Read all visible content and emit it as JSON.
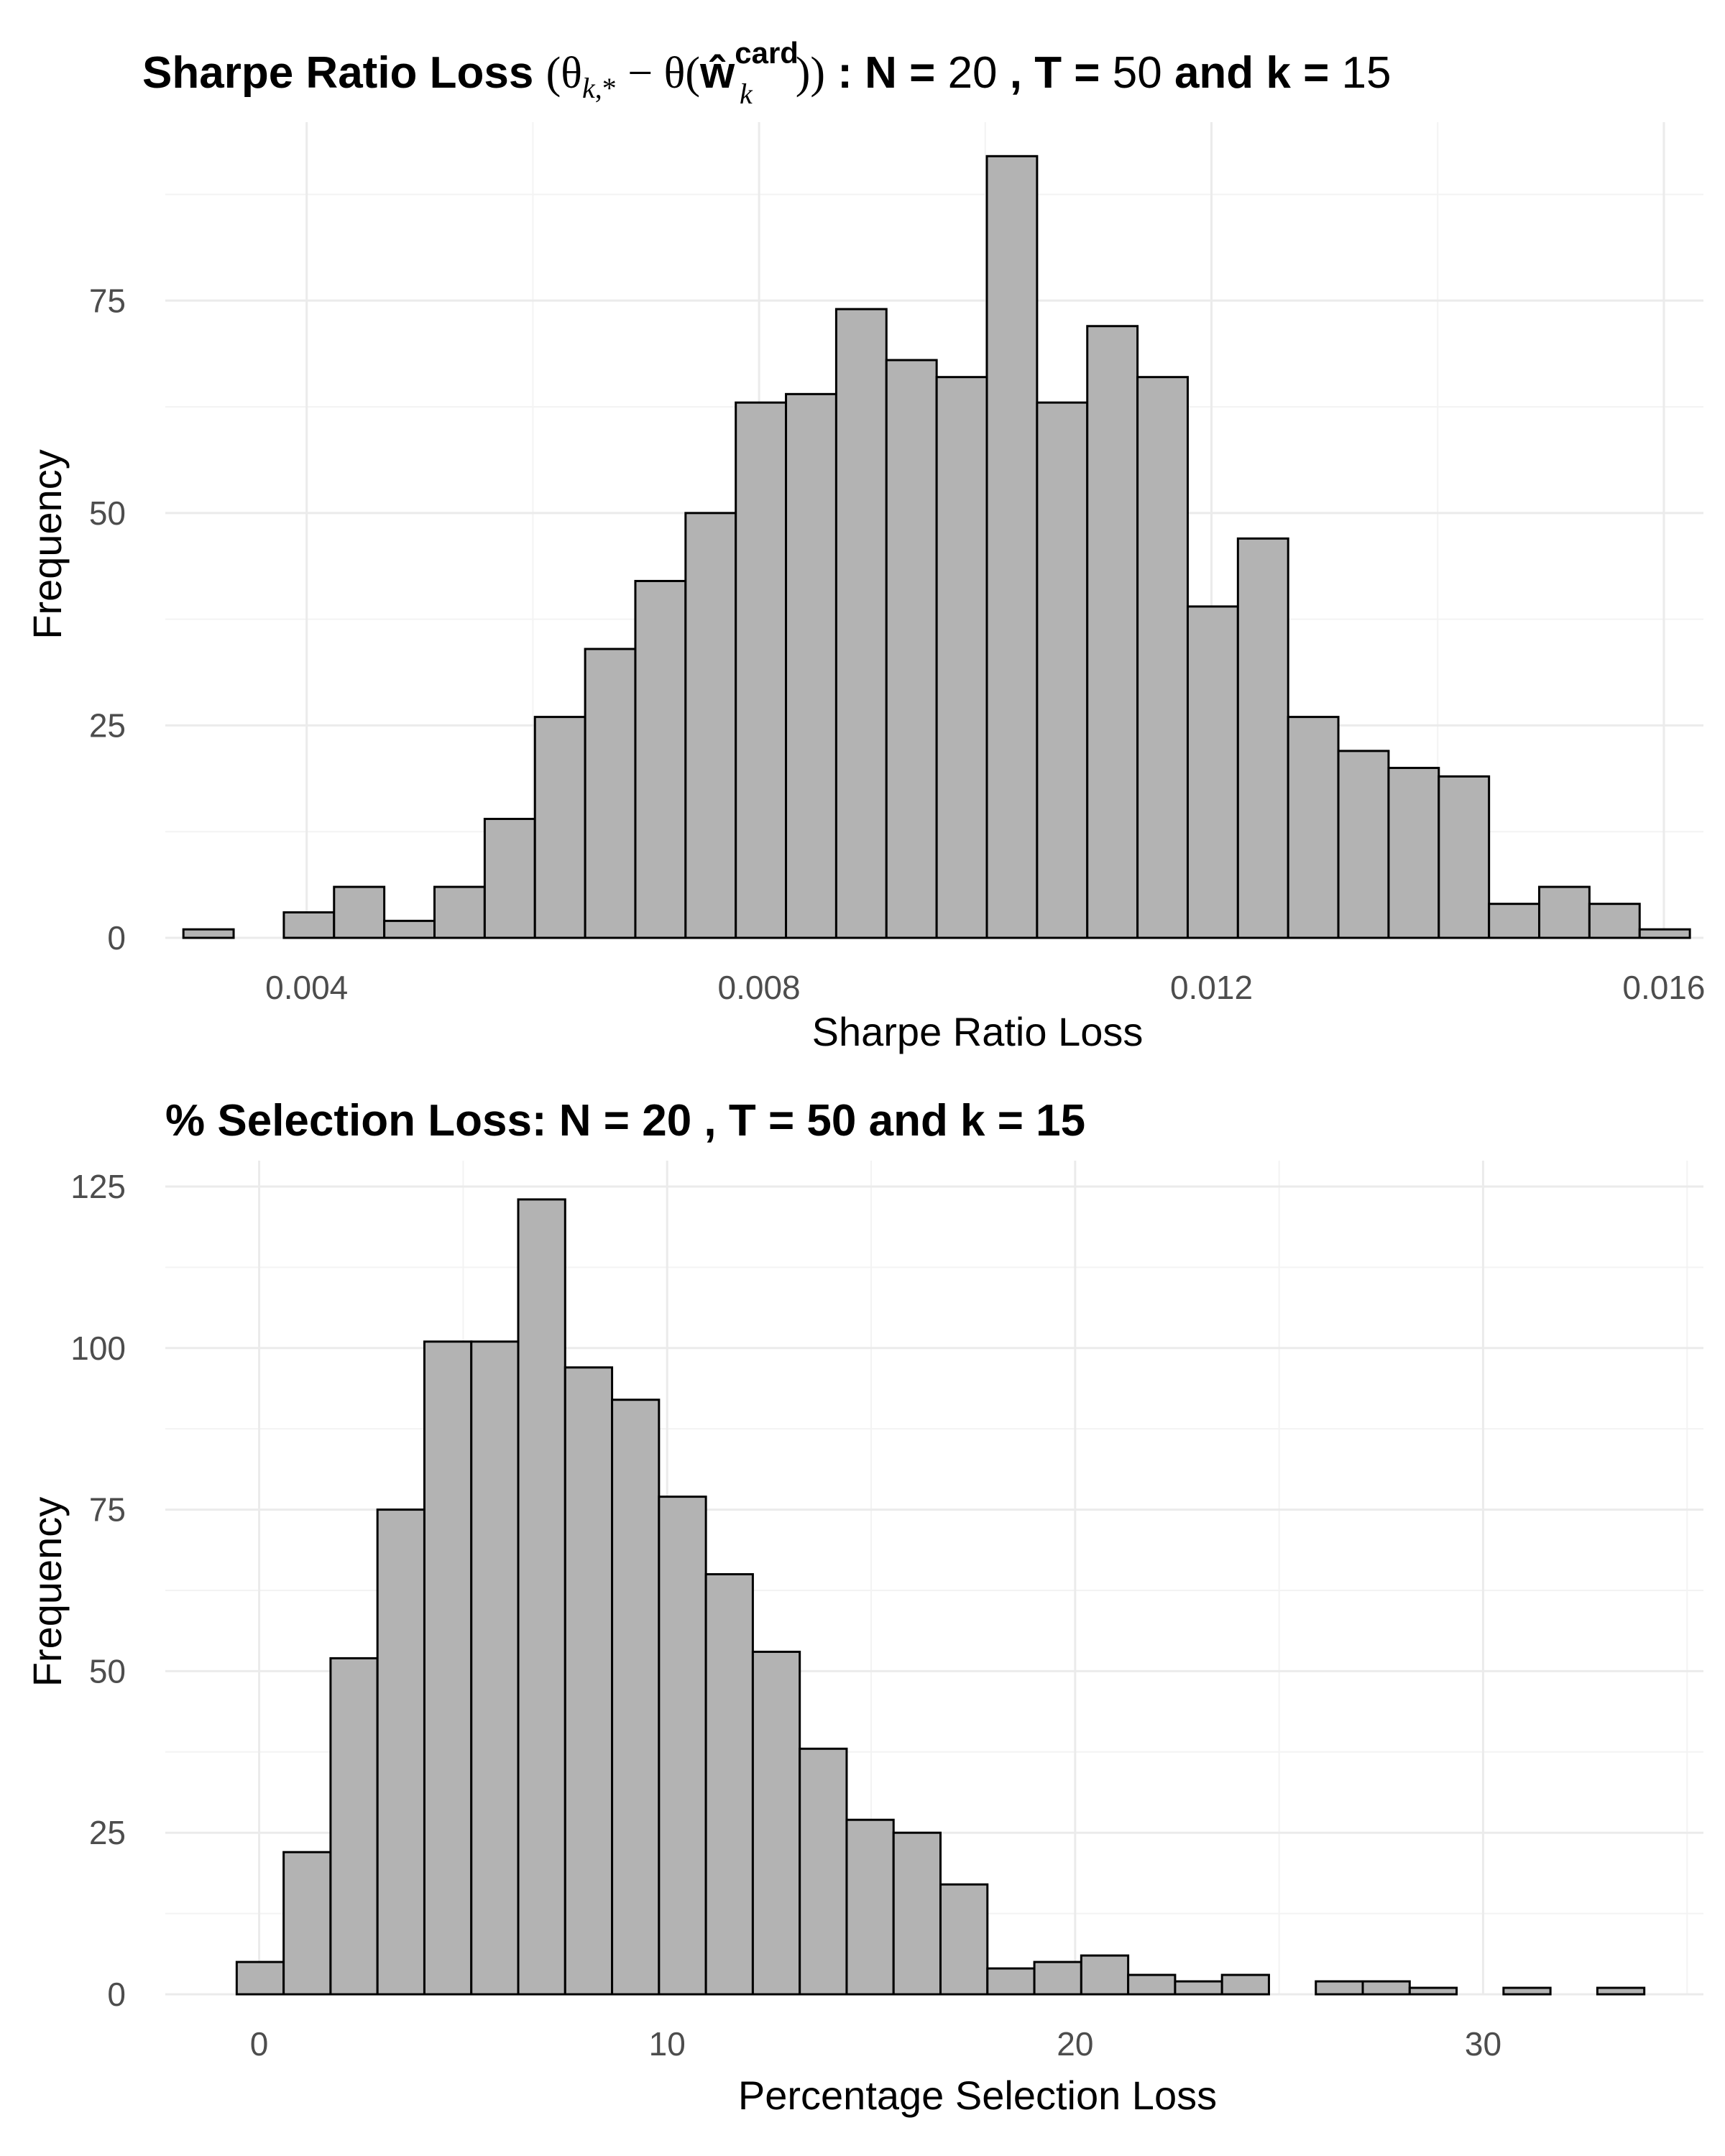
{
  "chart_data": [
    {
      "type": "bar",
      "title_parts": {
        "prefix": "Sharpe Ratio Loss ",
        "expr_open": "(θ",
        "sub_k": "k",
        "sub_star": ",*",
        "expr_mid": " − θ(",
        "w_hat": "ŵ",
        "sup_card": "card",
        "sub_k2": "k",
        "expr_close": "))",
        "n_label": " : N = ",
        "n_value": "20",
        "t_label": " , T = ",
        "t_value": "50",
        "k_label": "  and k = ",
        "k_value": "15"
      },
      "xlabel": "Sharpe Ratio Loss",
      "ylabel": "Frequency",
      "xlim": [
        0.00275,
        0.01635
      ],
      "ylim": [
        0,
        96
      ],
      "xticks": [
        0.004,
        0.008,
        0.012,
        0.016
      ],
      "xtick_labels": [
        "0.004",
        "0.008",
        "0.012",
        "0.016"
      ],
      "yticks": [
        0,
        25,
        50,
        75
      ],
      "ytick_labels": [
        "0",
        "25",
        "50",
        "75"
      ],
      "bin_start": 0.00291,
      "bin_width": 0.000444,
      "values": [
        1,
        0,
        3,
        6,
        2,
        6,
        14,
        26,
        34,
        42,
        50,
        63,
        64,
        74,
        68,
        66,
        92,
        63,
        72,
        66,
        39,
        47,
        26,
        22,
        20,
        19,
        4,
        6,
        4,
        1
      ]
    },
    {
      "type": "bar",
      "title": "% Selection Loss: N = 20 , T = 50 and k = 15",
      "xlabel": "Percentage Selection Loss",
      "ylabel": "Frequency",
      "xlim": [
        -2.3,
        35.4
      ],
      "ylim": [
        0,
        129
      ],
      "xticks": [
        0,
        10,
        20,
        30
      ],
      "xtick_labels": [
        "0",
        "10",
        "20",
        "30"
      ],
      "yticks": [
        0,
        25,
        50,
        75,
        100,
        125
      ],
      "ytick_labels": [
        "0",
        "25",
        "50",
        "75",
        "100",
        "125"
      ],
      "bin_start": -0.55,
      "bin_width": 1.15,
      "values": [
        5,
        22,
        52,
        75,
        101,
        101,
        123,
        97,
        92,
        77,
        65,
        53,
        38,
        27,
        25,
        17,
        4,
        5,
        6,
        3,
        2,
        3,
        0,
        2,
        2,
        1,
        0,
        1,
        0,
        1
      ]
    }
  ]
}
